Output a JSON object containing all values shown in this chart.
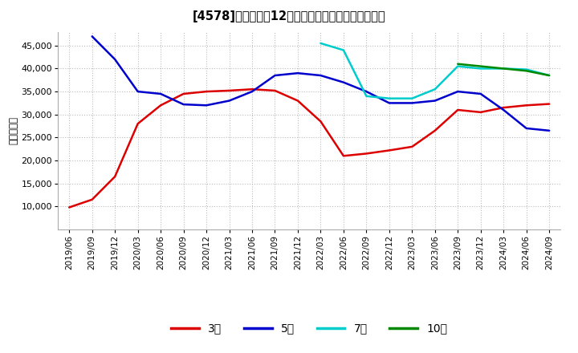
{
  "title": "[4578]　経常利益12か月移動合計の標準偶差の推移",
  "ylabel": "（百万円）",
  "background_color": "#ffffff",
  "plot_background": "#ffffff",
  "grid_color": "#bbbbbb",
  "ylim": [
    5000,
    48000
  ],
  "yticks": [
    10000,
    15000,
    20000,
    25000,
    30000,
    35000,
    40000,
    45000
  ],
  "series": {
    "3年": {
      "color": "#dd0000",
      "data": [
        [
          "2019/06",
          9800
        ],
        [
          "2019/09",
          11500
        ],
        [
          "2019/12",
          16500
        ],
        [
          "2020/03",
          28000
        ],
        [
          "2020/06",
          32000
        ],
        [
          "2020/09",
          34500
        ],
        [
          "2020/12",
          35000
        ],
        [
          "2021/03",
          35200
        ],
        [
          "2021/06",
          35500
        ],
        [
          "2021/09",
          35200
        ],
        [
          "2021/12",
          33000
        ],
        [
          "2022/03",
          28500
        ],
        [
          "2022/06",
          21000
        ],
        [
          "2022/09",
          21500
        ],
        [
          "2022/12",
          22200
        ],
        [
          "2023/03",
          23000
        ],
        [
          "2023/06",
          26500
        ],
        [
          "2023/09",
          31000
        ],
        [
          "2023/12",
          30500
        ],
        [
          "2024/03",
          31500
        ],
        [
          "2024/06",
          32000
        ],
        [
          "2024/09",
          32300
        ]
      ]
    },
    "5年": {
      "color": "#0000cc",
      "data": [
        [
          "2019/09",
          47000
        ],
        [
          "2019/12",
          42000
        ],
        [
          "2020/03",
          35000
        ],
        [
          "2020/06",
          34500
        ],
        [
          "2020/09",
          32200
        ],
        [
          "2020/12",
          32000
        ],
        [
          "2021/03",
          33000
        ],
        [
          "2021/06",
          35000
        ],
        [
          "2021/09",
          38500
        ],
        [
          "2021/12",
          39000
        ],
        [
          "2022/03",
          38500
        ],
        [
          "2022/06",
          37000
        ],
        [
          "2022/09",
          35000
        ],
        [
          "2022/12",
          32500
        ],
        [
          "2023/03",
          32500
        ],
        [
          "2023/06",
          33000
        ],
        [
          "2023/09",
          35000
        ],
        [
          "2023/12",
          34500
        ],
        [
          "2024/03",
          31000
        ],
        [
          "2024/06",
          27000
        ],
        [
          "2024/09",
          26500
        ]
      ]
    },
    "7年": {
      "color": "#00cccc",
      "data": [
        [
          "2022/03",
          45500
        ],
        [
          "2022/06",
          44000
        ],
        [
          "2022/09",
          34000
        ],
        [
          "2022/12",
          33500
        ],
        [
          "2023/03",
          33500
        ],
        [
          "2023/06",
          35500
        ],
        [
          "2023/09",
          40500
        ],
        [
          "2023/12",
          40000
        ],
        [
          "2024/03",
          40000
        ],
        [
          "2024/06",
          39800
        ],
        [
          "2024/09",
          38500
        ]
      ]
    },
    "10年": {
      "color": "#008800",
      "data": [
        [
          "2023/09",
          41000
        ],
        [
          "2023/12",
          40500
        ],
        [
          "2024/03",
          40000
        ],
        [
          "2024/06",
          39500
        ],
        [
          "2024/09",
          38500
        ]
      ]
    }
  },
  "legend_labels": [
    "3年",
    "5年",
    "7年",
    "10年"
  ],
  "legend_colors": [
    "#dd0000",
    "#0000cc",
    "#00cccc",
    "#008800"
  ],
  "xtick_labels": [
    "2019/06",
    "2019/09",
    "2019/12",
    "2020/03",
    "2020/06",
    "2020/09",
    "2020/12",
    "2021/03",
    "2021/06",
    "2021/09",
    "2021/12",
    "2022/03",
    "2022/06",
    "2022/09",
    "2022/12",
    "2023/03",
    "2023/06",
    "2023/09",
    "2023/12",
    "2024/03",
    "2024/06",
    "2024/09"
  ]
}
